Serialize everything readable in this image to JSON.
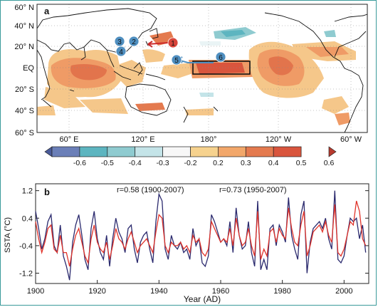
{
  "panel_a": {
    "label": "a",
    "y_ticks": [
      "60° N",
      "40° N",
      "20° N",
      "EQ",
      "20° S",
      "40° S",
      "60° S"
    ],
    "x_ticks": [
      "60° E",
      "120° E",
      "180°",
      "120° W",
      "60° W"
    ],
    "markers": [
      "1",
      "2",
      "3",
      "4",
      "5",
      "6"
    ],
    "colorbar": {
      "ticks": [
        "-0.6",
        "-0.5",
        "-0.4",
        "-0.3",
        "-0.2",
        "0.2",
        "0.3",
        "0.4",
        "0.5",
        "0.6"
      ],
      "colors": [
        "#4a5b9a",
        "#6b7fb8",
        "#5db5c0",
        "#8fcbd0",
        "#c4e4e8",
        "#f7f7f7",
        "#f6d28e",
        "#f2a76a",
        "#e47a4f",
        "#d9553d",
        "#b83a2e"
      ]
    },
    "warm_color": "#ea9060",
    "cool_color": "#8fcbd0",
    "marker_color": "#4f8fc0"
  },
  "panel_b": {
    "label": "b",
    "annotations": [
      "r=0.58 (1900-2007)",
      "r=0.73 (1950-2007)"
    ]
  },
  "chart_data": {
    "type": "line",
    "title": "",
    "xlabel": "Year (AD)",
    "ylabel": "SSTA (°C)",
    "xlim": [
      1900,
      2008
    ],
    "ylim": [
      -1.5,
      1.4
    ],
    "x_ticks": [
      1900,
      1920,
      1940,
      1960,
      1980,
      2000
    ],
    "y_ticks": [
      1.2,
      0.4,
      -0.4,
      -1.2
    ],
    "x": [
      1900,
      1901,
      1902,
      1903,
      1904,
      1905,
      1906,
      1907,
      1908,
      1909,
      1910,
      1911,
      1912,
      1913,
      1914,
      1915,
      1916,
      1917,
      1918,
      1919,
      1920,
      1921,
      1922,
      1923,
      1924,
      1925,
      1926,
      1927,
      1928,
      1929,
      1930,
      1931,
      1932,
      1933,
      1934,
      1935,
      1936,
      1937,
      1938,
      1939,
      1940,
      1941,
      1942,
      1943,
      1944,
      1945,
      1946,
      1947,
      1948,
      1949,
      1950,
      1951,
      1952,
      1953,
      1954,
      1955,
      1956,
      1957,
      1958,
      1959,
      1960,
      1961,
      1962,
      1963,
      1964,
      1965,
      1966,
      1967,
      1968,
      1969,
      1970,
      1971,
      1972,
      1973,
      1974,
      1975,
      1976,
      1977,
      1978,
      1979,
      1980,
      1981,
      1982,
      1983,
      1984,
      1985,
      1986,
      1987,
      1988,
      1989,
      1990,
      1991,
      1992,
      1993,
      1994,
      1995,
      1996,
      1997,
      1998,
      1999,
      2000,
      2001,
      2002,
      2003,
      2004,
      2005,
      2006,
      2007
    ],
    "series": [
      {
        "color": "#2b2a6e",
        "values": [
          0.6,
          0.1,
          -0.5,
          -0.2,
          0.3,
          0.5,
          -0.4,
          -0.6,
          0.2,
          -0.7,
          -1.0,
          -1.4,
          -0.3,
          0.2,
          0.5,
          -0.1,
          -0.8,
          -1.1,
          0.1,
          0.6,
          -0.2,
          -0.6,
          -0.8,
          -0.1,
          -1.0,
          -0.2,
          0.4,
          0.0,
          -0.2,
          -0.6,
          0.1,
          0.2,
          -0.5,
          -0.9,
          -0.3,
          -0.1,
          0.0,
          -0.5,
          -0.9,
          0.3,
          1.1,
          0.9,
          -0.5,
          -0.8,
          -0.1,
          -0.4,
          -0.5,
          -0.3,
          -0.6,
          -0.5,
          -0.8,
          0.1,
          -0.4,
          -0.2,
          -0.9,
          -1.0,
          -0.7,
          0.5,
          0.3,
          0.0,
          -0.3,
          -0.2,
          -0.4,
          0.3,
          -0.6,
          0.7,
          -0.1,
          -0.5,
          -0.4,
          0.3,
          -0.6,
          -1.0,
          0.9,
          -1.1,
          -0.8,
          -1.1,
          0.1,
          0.2,
          -0.4,
          0.2,
          0.0,
          -0.3,
          1.0,
          -0.1,
          -0.5,
          -0.8,
          0.5,
          0.9,
          -1.2,
          -0.3,
          0.1,
          0.2,
          0.3,
          0.1,
          0.4,
          -0.2,
          -0.5,
          1.2,
          -0.8,
          -0.9,
          -0.7,
          -0.1,
          0.4,
          0.3,
          0.4,
          -0.2,
          0.2,
          -0.6
        ]
      },
      {
        "color": "#e0332a",
        "values": [
          0.3,
          -0.2,
          -0.6,
          -0.3,
          0.1,
          0.2,
          -0.5,
          -0.6,
          -0.1,
          -0.6,
          -0.6,
          -1.0,
          -0.5,
          -0.1,
          0.1,
          -0.3,
          -0.7,
          -0.9,
          -0.2,
          0.2,
          -0.3,
          -0.5,
          -0.6,
          -0.3,
          -0.8,
          -0.4,
          0.1,
          -0.2,
          -0.3,
          -0.5,
          -0.2,
          0.0,
          -0.3,
          -0.6,
          -0.4,
          -0.3,
          -0.2,
          -0.4,
          -0.6,
          0.0,
          0.5,
          0.4,
          -0.4,
          -0.6,
          -0.3,
          -0.4,
          -0.4,
          -0.3,
          -0.5,
          -0.4,
          -0.6,
          -0.1,
          -0.3,
          -0.2,
          -0.6,
          -0.7,
          -0.5,
          0.3,
          0.1,
          -0.1,
          -0.3,
          -0.2,
          -0.3,
          0.1,
          -0.4,
          0.4,
          -0.1,
          -0.4,
          -0.3,
          0.1,
          -0.4,
          -0.7,
          0.6,
          -0.8,
          -0.5,
          -0.7,
          0.0,
          0.1,
          -0.3,
          0.1,
          -0.1,
          -0.2,
          0.7,
          0.1,
          -0.3,
          -0.4,
          0.2,
          0.6,
          -0.7,
          -0.4,
          0.0,
          0.1,
          0.2,
          0.0,
          0.3,
          -0.1,
          -0.3,
          0.8,
          -0.6,
          -0.7,
          -0.5,
          -0.1,
          0.3,
          0.2,
          0.9,
          0.6,
          -0.2,
          -0.4
        ]
      }
    ]
  }
}
